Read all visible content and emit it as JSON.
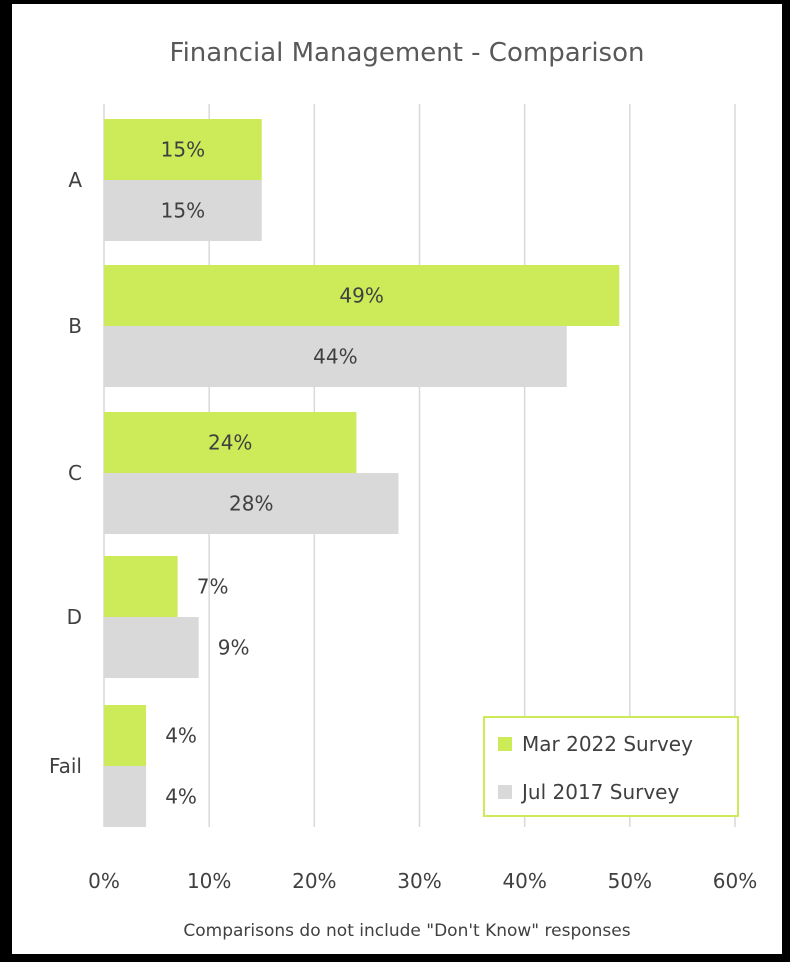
{
  "chart_data": {
    "type": "bar",
    "orientation": "horizontal",
    "title": "Financial Management - Comparison",
    "categories": [
      "A",
      "B",
      "C",
      "D",
      "Fail"
    ],
    "series": [
      {
        "name": "Mar 2022 Survey",
        "values": [
          15,
          49,
          24,
          7,
          4
        ],
        "labels": [
          "15%",
          "49%",
          "24%",
          "7%",
          "4%"
        ],
        "color": "#cdeb59"
      },
      {
        "name": "Jul 2017 Survey",
        "values": [
          15,
          44,
          28,
          9,
          4
        ],
        "labels": [
          "15%",
          "44%",
          "28%",
          "9%",
          "4%"
        ],
        "color": "#d9d9d9"
      }
    ],
    "xlim": [
      0,
      60
    ],
    "xticks": [
      "0%",
      "10%",
      "20%",
      "30%",
      "40%",
      "50%",
      "60%"
    ],
    "grid": "vertical",
    "legend_position": "bottom-right",
    "legend_border_color": "#cdeb59",
    "footnote": "Comparisons do not include \"Don't Know\" responses"
  }
}
